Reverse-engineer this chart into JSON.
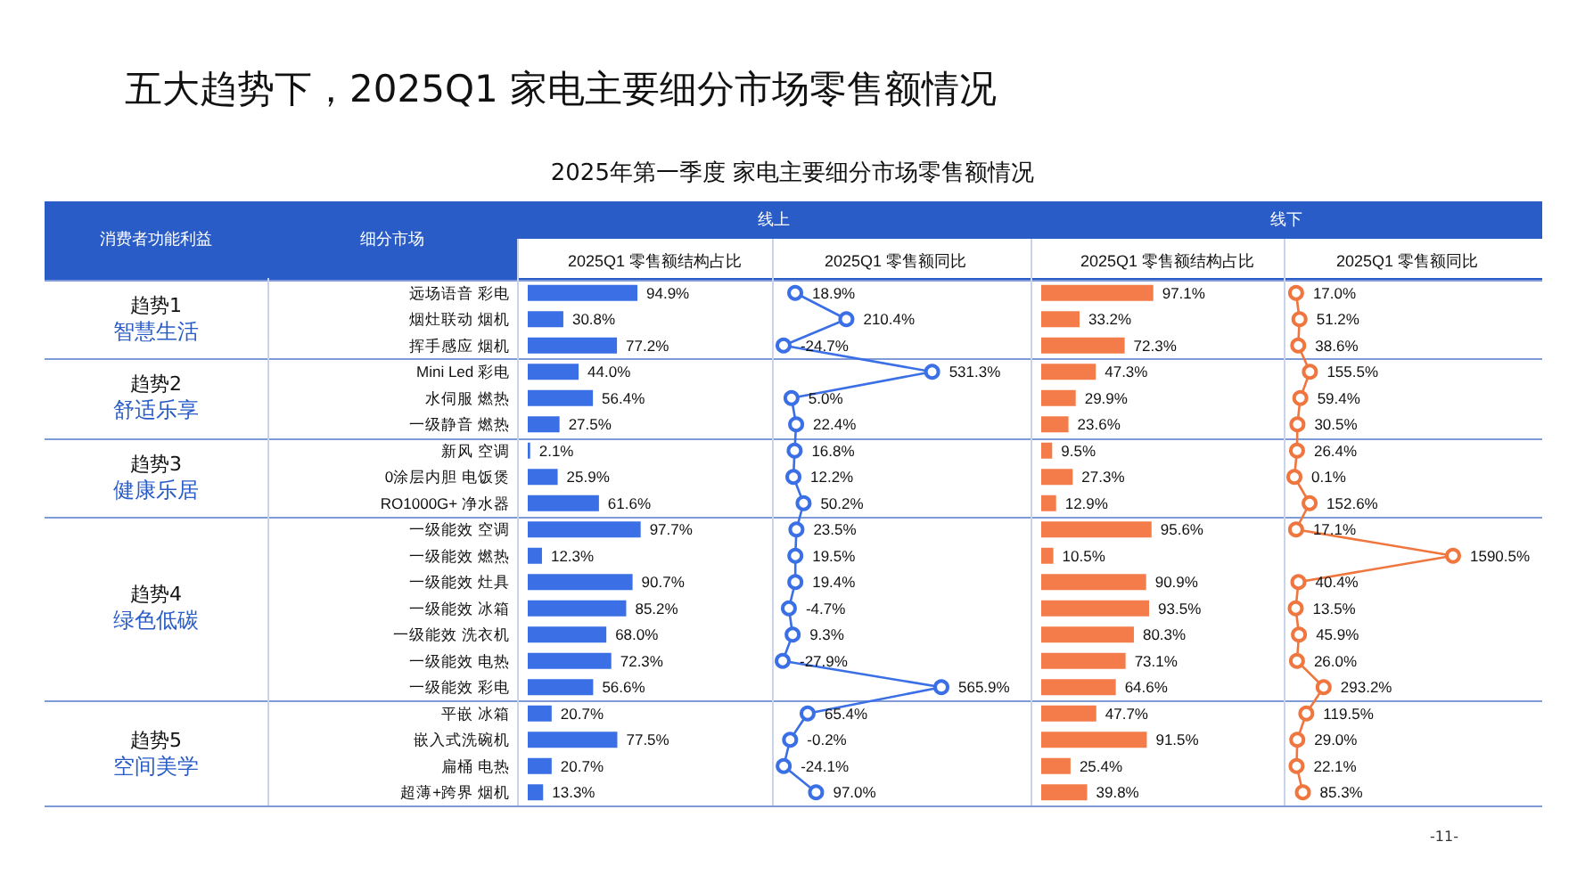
{
  "chart_data": [
    {
      "type": "other",
      "title": "五大趋势下，2025Q1 家电主要细分市场零售额情况",
      "subtitle": "2025年第一季度 家电主要细分市场零售额情况",
      "annotations": [
        "消费者功能利益",
        "细分市场",
        "线上",
        "线下",
        "趋势1",
        "智慧生活",
        "趋势2",
        "舒适乐享",
        "趋势3",
        "健康乐居",
        "趋势4",
        "绿色低碳",
        "趋势5",
        "空间美学",
        "-11-"
      ]
    },
    {
      "type": "bar",
      "orientation": "horizontal",
      "title": "2025Q1 零售额结构占比",
      "tick_labels": "y",
      "color": "#3b6fe6",
      "categories": [
        "远场语音 彩电",
        "烟灶联动 烟机",
        "挥手感应 烟机",
        "Mini Led 彩电",
        "水伺服 燃热",
        "一级静音 燃热",
        "新风 空调",
        "0涂层内胆 电饭煲",
        "RO1000G+ 净水器",
        "一级能效 空调",
        "一级能效 燃热",
        "一级能效 灶具",
        "一级能效 冰箱",
        "一级能效 洗衣机",
        "一级能效 电热",
        "一级能效 彩电",
        "平嵌 冰箱",
        "嵌入式洗碗机",
        "扁桶 电热",
        "超薄+跨界 烟机"
      ],
      "values": [
        94.9,
        30.8,
        77.2,
        44.0,
        56.4,
        27.5,
        2.1,
        25.9,
        61.6,
        97.7,
        12.3,
        90.7,
        85.2,
        68.0,
        72.3,
        56.6,
        20.7,
        77.5,
        20.7,
        13.3
      ],
      "value_labels": [
        "94.9%",
        "30.8%",
        "77.2%",
        "44.0%",
        "56.4%",
        "27.5%",
        "2.1%",
        "25.9%",
        "61.6%",
        "97.7%",
        "12.3%",
        "90.7%",
        "85.2%",
        "68.0%",
        "72.3%",
        "56.6%",
        "20.7%",
        "77.5%",
        "20.7%",
        "13.3%"
      ]
    },
    {
      "type": "line",
      "orientation": "horizontal",
      "title": "2025Q1 零售额同比",
      "tick_labels": false,
      "marker": "circle",
      "color": "#3b6fe6",
      "values": [
        18.9,
        210.4,
        -24.7,
        531.3,
        5.0,
        22.4,
        16.8,
        12.2,
        50.2,
        23.5,
        19.5,
        19.4,
        -4.7,
        9.3,
        -27.9,
        565.9,
        65.4,
        -0.2,
        -24.1,
        97.0
      ],
      "value_labels": [
        "18.9%",
        "210.4%",
        "-24.7%",
        "531.3%",
        "5.0%",
        "22.4%",
        "16.8%",
        "12.2%",
        "50.2%",
        "23.5%",
        "19.5%",
        "19.4%",
        "-4.7%",
        "9.3%",
        "-27.9%",
        "565.9%",
        "65.4%",
        "-0.2%",
        "-24.1%",
        "97.0%"
      ]
    },
    {
      "type": "bar",
      "orientation": "horizontal",
      "title": "2025Q1 零售额结构占比",
      "tick_labels": false,
      "color": "#f47c4a",
      "values": [
        97.1,
        33.2,
        72.3,
        47.3,
        29.9,
        23.6,
        9.5,
        27.3,
        12.9,
        95.6,
        10.5,
        90.9,
        93.5,
        80.3,
        73.1,
        64.6,
        47.7,
        91.5,
        25.4,
        39.8
      ],
      "value_labels": [
        "97.1%",
        "33.2%",
        "72.3%",
        "47.3%",
        "29.9%",
        "23.6%",
        "9.5%",
        "27.3%",
        "12.9%",
        "95.6%",
        "10.5%",
        "90.9%",
        "93.5%",
        "80.3%",
        "73.1%",
        "64.6%",
        "47.7%",
        "91.5%",
        "25.4%",
        "39.8%"
      ]
    },
    {
      "type": "line",
      "orientation": "horizontal",
      "title": "2025Q1 零售额同比",
      "tick_labels": false,
      "marker": "circle",
      "color": "#f0763f",
      "values": [
        17.0,
        51.2,
        38.6,
        155.5,
        59.4,
        30.5,
        26.4,
        0.1,
        152.6,
        17.1,
        1590.5,
        40.4,
        13.5,
        45.9,
        26.0,
        293.2,
        119.5,
        29.0,
        22.1,
        85.3
      ],
      "value_labels": [
        "17.0%",
        "51.2%",
        "38.6%",
        "155.5%",
        "59.4%",
        "30.5%",
        "26.4%",
        "0.1%",
        "152.6%",
        "17.1%",
        "1590.5%",
        "40.4%",
        "13.5%",
        "45.9%",
        "26.0%",
        "293.2%",
        "119.5%",
        "29.0%",
        "22.1%",
        "85.3%"
      ]
    }
  ]
}
